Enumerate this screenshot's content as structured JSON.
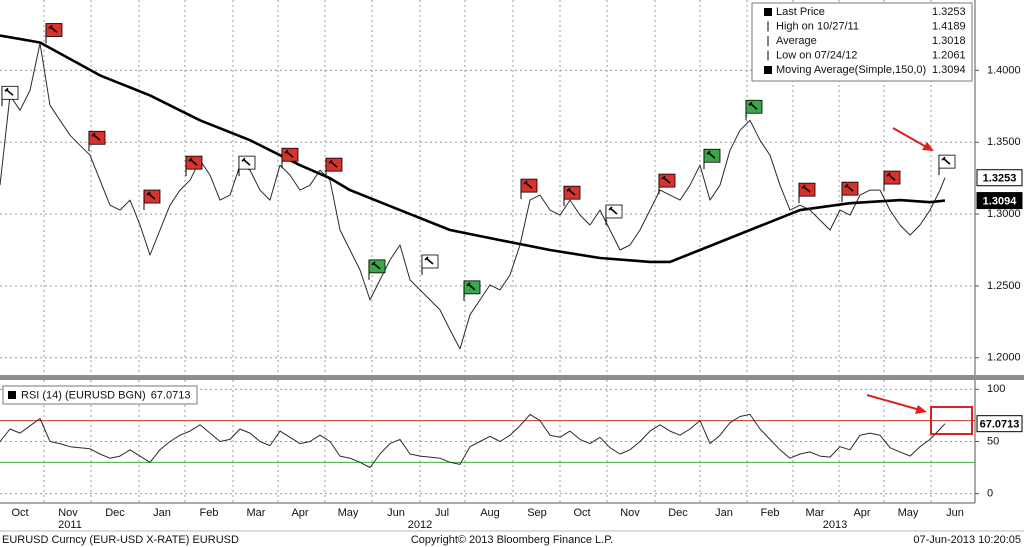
{
  "chart_data": [
    {
      "type": "line",
      "xlim": [
        0,
        97.5
      ],
      "ylim": [
        1.188,
        1.449
      ],
      "yticks": [
        {
          "value": 1.2,
          "label": "1.2000"
        },
        {
          "value": 1.25,
          "label": "1.2500"
        },
        {
          "value": 1.3,
          "label": "1.3000"
        },
        {
          "value": 1.35,
          "label": "1.3500"
        },
        {
          "value": 1.4,
          "label": "1.4000"
        }
      ],
      "grid": true,
      "legend": "top-right",
      "x": [
        0,
        1,
        2,
        3,
        4,
        5,
        6,
        7,
        8,
        9,
        10,
        11,
        12,
        13,
        14,
        15,
        16,
        17,
        18,
        19,
        20,
        21,
        22,
        23,
        24,
        25,
        26,
        27,
        28,
        29,
        30,
        31,
        32,
        33,
        34,
        35,
        36,
        37,
        38,
        39,
        40,
        41,
        42,
        43,
        44,
        45,
        46,
        47,
        48,
        49,
        50,
        51,
        52,
        53,
        54,
        55,
        56,
        57,
        58,
        59,
        60,
        61,
        62,
        63,
        64,
        65,
        66,
        67,
        68,
        69,
        70,
        71,
        72,
        73,
        74,
        75,
        76,
        77,
        78,
        79,
        80,
        81,
        82,
        83,
        84,
        85,
        86,
        87,
        88,
        89,
        90,
        91,
        92,
        93,
        94,
        94.5
      ],
      "series": [
        {
          "name": "Last Price",
          "color": "#2a2a2a",
          "last_value": 1.3253,
          "values": [
            1.3201,
            1.3826,
            1.3722,
            1.3861,
            1.4188,
            1.3757,
            1.3653,
            1.3549,
            1.3479,
            1.341,
            1.3236,
            1.3062,
            1.3028,
            1.3097,
            1.2924,
            1.2715,
            1.2889,
            1.3062,
            1.3167,
            1.3236,
            1.3375,
            1.3271,
            1.3097,
            1.3132,
            1.334,
            1.3306,
            1.3167,
            1.3097,
            1.334,
            1.3271,
            1.3167,
            1.3201,
            1.3306,
            1.3236,
            1.2889,
            1.275,
            1.2611,
            1.2403,
            1.2542,
            1.2681,
            1.2785,
            1.2542,
            1.2472,
            1.2403,
            1.2333,
            1.2194,
            1.2062,
            1.2299,
            1.2403,
            1.2507,
            1.2472,
            1.2576,
            1.2785,
            1.3097,
            1.3132,
            1.3028,
            1.2993,
            1.3097,
            1.2993,
            1.2924,
            1.3028,
            1.2889,
            1.275,
            1.2785,
            1.2889,
            1.3028,
            1.3167,
            1.3132,
            1.3097,
            1.3201,
            1.334,
            1.3097,
            1.3201,
            1.3444,
            1.3583,
            1.3653,
            1.3514,
            1.341,
            1.3201,
            1.3028,
            1.3062,
            1.3028,
            1.2958,
            1.2889,
            1.3028,
            1.2993,
            1.3132,
            1.3167,
            1.3167,
            1.3028,
            1.2924,
            1.2854,
            1.2924,
            1.3028,
            1.3167,
            1.3253
          ]
        },
        {
          "name": "Moving Average(Simple,150,0)",
          "color": "#000000",
          "last_value": 1.3094,
          "x": [
            0,
            4,
            10,
            15,
            20,
            25,
            30,
            33,
            35,
            40,
            45,
            50,
            55,
            60,
            65,
            67,
            70,
            75,
            80,
            85,
            90,
            93,
            94.5
          ],
          "values": [
            1.4243,
            1.4194,
            1.3965,
            1.3826,
            1.3653,
            1.3514,
            1.334,
            1.325,
            1.3167,
            1.3028,
            1.2889,
            1.2819,
            1.275,
            1.2694,
            1.2667,
            1.2667,
            1.275,
            1.2889,
            1.3028,
            1.3076,
            1.3097,
            1.3083,
            1.3094
          ]
        }
      ],
      "stats": [
        {
          "name": "High on 10/27/11",
          "value": 1.4189
        },
        {
          "name": "Average",
          "value": 1.3018
        },
        {
          "name": "Low on 07/24/12",
          "value": 1.2061
        }
      ],
      "signals": [
        {
          "x": 0.8,
          "y": 1.3764,
          "color": "#ffffff"
        },
        {
          "x": 5.2,
          "y": 1.4201,
          "color": "#d9312b"
        },
        {
          "x": 9.5,
          "y": 1.3451,
          "color": "#d9312b"
        },
        {
          "x": 15,
          "y": 1.3042,
          "color": "#d9312b"
        },
        {
          "x": 19.2,
          "y": 1.3278,
          "color": "#d9312b"
        },
        {
          "x": 24.5,
          "y": 1.3278,
          "color": "#ffffff"
        },
        {
          "x": 28.8,
          "y": 1.3333,
          "color": "#d9312b"
        },
        {
          "x": 33.2,
          "y": 1.3264,
          "color": "#d9312b"
        },
        {
          "x": 37.5,
          "y": 1.2556,
          "color": "#3aa84a"
        },
        {
          "x": 42.8,
          "y": 1.259,
          "color": "#ffffff"
        },
        {
          "x": 47,
          "y": 1.241,
          "color": "#3aa84a"
        },
        {
          "x": 52.7,
          "y": 1.3118,
          "color": "#d9312b"
        },
        {
          "x": 57,
          "y": 1.3069,
          "color": "#d9312b"
        },
        {
          "x": 61.2,
          "y": 1.2938,
          "color": "#ffffff"
        },
        {
          "x": 66.5,
          "y": 1.3153,
          "color": "#d9312b"
        },
        {
          "x": 71,
          "y": 1.3326,
          "color": "#3aa84a"
        },
        {
          "x": 75.2,
          "y": 1.3667,
          "color": "#3aa84a"
        },
        {
          "x": 80.5,
          "y": 1.309,
          "color": "#d9312b"
        },
        {
          "x": 84.8,
          "y": 1.3097,
          "color": "#d9312b"
        },
        {
          "x": 89,
          "y": 1.3174,
          "color": "#d9312b"
        },
        {
          "x": 94.5,
          "y": 1.3285,
          "color": "#ffffff"
        }
      ]
    },
    {
      "type": "line",
      "xlim": [
        0,
        97.5
      ],
      "ylim": [
        -9,
        108
      ],
      "yticks": [
        0,
        50,
        100
      ],
      "ref_lines": [
        {
          "value": 70,
          "color": "#c0392b"
        },
        {
          "value": 30,
          "color": "#3cb043"
        }
      ],
      "xticks": [
        {
          "value": 2.0,
          "label": "Oct"
        },
        {
          "value": 6.8,
          "label": "Nov"
        },
        {
          "value": 11.5,
          "label": "Dec"
        },
        {
          "value": 16.2,
          "label": "Jan"
        },
        {
          "value": 20.9,
          "label": "Feb"
        },
        {
          "value": 25.6,
          "label": "Mar"
        },
        {
          "value": 30.0,
          "label": "Apr"
        },
        {
          "value": 34.8,
          "label": "May"
        },
        {
          "value": 39.6,
          "label": "Jun"
        },
        {
          "value": 44.2,
          "label": "Jul"
        },
        {
          "value": 49.0,
          "label": "Aug"
        },
        {
          "value": 53.7,
          "label": "Sep"
        },
        {
          "value": 58.2,
          "label": "Oct"
        },
        {
          "value": 63.0,
          "label": "Nov"
        },
        {
          "value": 67.8,
          "label": "Dec"
        },
        {
          "value": 72.4,
          "label": "Jan"
        },
        {
          "value": 77.0,
          "label": "Feb"
        },
        {
          "value": 81.5,
          "label": "Mar"
        },
        {
          "value": 86.2,
          "label": "Apr"
        },
        {
          "value": 90.8,
          "label": "May"
        },
        {
          "value": 95.5,
          "label": "Jun"
        }
      ],
      "year_ticks": [
        {
          "value": 7.0,
          "label": "2011"
        },
        {
          "value": 42.0,
          "label": "2012"
        },
        {
          "value": 83.5,
          "label": "2013"
        }
      ],
      "xgrid": [
        4.4,
        9.1,
        13.9,
        18.5,
        23.3,
        27.8,
        32.5,
        37.2,
        42.0,
        46.5,
        51.3,
        56.0,
        60.7,
        65.5,
        70.0,
        74.7,
        79.3,
        83.9,
        88.4,
        93.1
      ],
      "x": [
        0,
        1,
        2,
        3,
        4,
        5,
        6,
        7,
        8,
        9,
        10,
        11,
        12,
        13,
        14,
        15,
        16,
        17,
        18,
        19,
        20,
        21,
        22,
        23,
        24,
        25,
        26,
        27,
        28,
        29,
        30,
        31,
        32,
        33,
        34,
        35,
        36,
        37,
        38,
        39,
        40,
        41,
        42,
        43,
        44,
        45,
        46,
        47,
        48,
        49,
        50,
        51,
        52,
        53,
        54,
        55,
        56,
        57,
        58,
        59,
        60,
        61,
        62,
        63,
        64,
        65,
        66,
        67,
        68,
        69,
        70,
        71,
        72,
        73,
        74,
        75,
        76,
        77,
        78,
        79,
        80,
        81,
        82,
        83,
        84,
        85,
        86,
        87,
        88,
        89,
        90,
        91,
        92,
        93,
        94,
        94.5
      ],
      "series": [
        {
          "name": "RSI (14) (EURUSD BGN)",
          "color": "#2a2a2a",
          "last_value": 67.0713,
          "values": [
            50,
            62,
            58,
            65,
            72,
            50,
            48,
            45,
            44,
            43,
            38,
            34,
            36,
            42,
            36,
            30,
            42,
            50,
            56,
            60,
            66,
            58,
            50,
            52,
            62,
            58,
            50,
            46,
            60,
            54,
            48,
            50,
            56,
            50,
            36,
            34,
            30,
            25,
            38,
            48,
            52,
            38,
            36,
            35,
            34,
            30,
            28,
            45,
            50,
            55,
            50,
            56,
            65,
            76,
            70,
            56,
            54,
            60,
            52,
            48,
            54,
            44,
            38,
            42,
            50,
            60,
            66,
            60,
            56,
            62,
            70,
            48,
            56,
            68,
            74,
            76,
            62,
            52,
            42,
            34,
            38,
            40,
            36,
            35,
            45,
            42,
            56,
            58,
            56,
            44,
            40,
            36,
            45,
            52,
            62,
            67.0713
          ]
        }
      ]
    }
  ],
  "footer": {
    "left": "EURUSD Curncy (EUR-USD X-RATE) EURUSD",
    "center": "Copyright© 2013 Bloomberg Finance L.P.",
    "right": "07-Jun-2013 10:20:05"
  }
}
